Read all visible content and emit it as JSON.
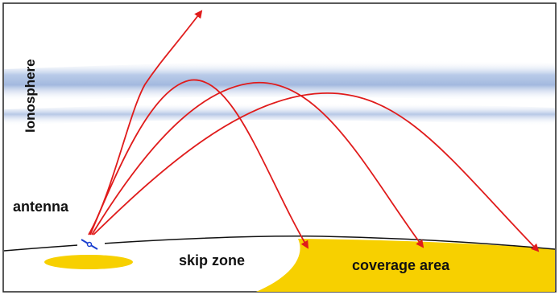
{
  "labels": {
    "ionosphere": "Ionosphere",
    "antenna": "antenna",
    "skip_zone": "skip zone",
    "coverage_area": "coverage area"
  },
  "colors": {
    "ray": "#e01b1b",
    "ionosphere": "#a9bee0",
    "coverage": "#f7d000",
    "ground_line": "#111111",
    "antenna": "#1a3fcf"
  },
  "icons": {
    "antenna": "antenna-icon"
  }
}
